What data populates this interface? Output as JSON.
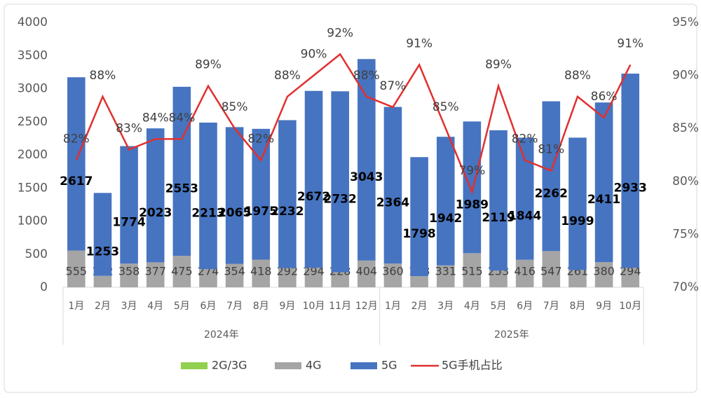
{
  "chart_data": {
    "type": "bar-line",
    "categories": [
      "1月",
      "2月",
      "3月",
      "4月",
      "5月",
      "6月",
      "7月",
      "8月",
      "9月",
      "10月",
      "11月",
      "12月",
      "1月",
      "2月",
      "3月",
      "4月",
      "5月",
      "6月",
      "7月",
      "8月",
      "9月",
      "10月"
    ],
    "groups": [
      "2024年",
      "2025年"
    ],
    "series": [
      {
        "name": "2G/3G",
        "color": "#92d050",
        "values": [
          0,
          0,
          0,
          0,
          0,
          0,
          0,
          0,
          0,
          0,
          0,
          0,
          0,
          0,
          0,
          0,
          0,
          0,
          0,
          0,
          0,
          0
        ]
      },
      {
        "name": "4G",
        "color": "#a5a5a5",
        "values": [
          555,
          172,
          358,
          377,
          475,
          274,
          354,
          418,
          292,
          294,
          228,
          404,
          360,
          168,
          331,
          515,
          253,
          416,
          547,
          261,
          380,
          294
        ]
      },
      {
        "name": "5G",
        "color": "#4674c1",
        "values": [
          2617,
          1253,
          1774,
          2023,
          2553,
          2213,
          2065,
          1975,
          2232,
          2672,
          2732,
          3043,
          2364,
          1798,
          1942,
          1989,
          2119,
          1844,
          2262,
          1999,
          2411,
          2933
        ]
      },
      {
        "name": "5G手机占比",
        "color": "#e0302f",
        "axis": "y2",
        "values": [
          82,
          88,
          83,
          84,
          84,
          89,
          85,
          82,
          88,
          90,
          92,
          88,
          87,
          91,
          85,
          79,
          89,
          82,
          81,
          88,
          86,
          91
        ],
        "value_labels": [
          "82%",
          "88%",
          "83%",
          "84%",
          "84%",
          "89%",
          "85%",
          "82%",
          "88%",
          "90%",
          "92%",
          "88%",
          "87%",
          "91%",
          "85%",
          "79%",
          "89%",
          "82%",
          "81%",
          "88%",
          "86%",
          "91%"
        ]
      }
    ],
    "ylim": [
      0,
      4000
    ],
    "yticks": [
      0,
      500,
      1000,
      1500,
      2000,
      2500,
      3000,
      3500,
      4000
    ],
    "y2lim": [
      70,
      95
    ],
    "y2ticks": [
      {
        "value": 70,
        "label": "70%"
      },
      {
        "value": 75,
        "label": "75%"
      },
      {
        "value": 80,
        "label": "80%"
      },
      {
        "value": 85,
        "label": "85%"
      },
      {
        "value": 90,
        "label": "90%"
      },
      {
        "value": 95,
        "label": "95%"
      }
    ],
    "legend": "bottom"
  }
}
